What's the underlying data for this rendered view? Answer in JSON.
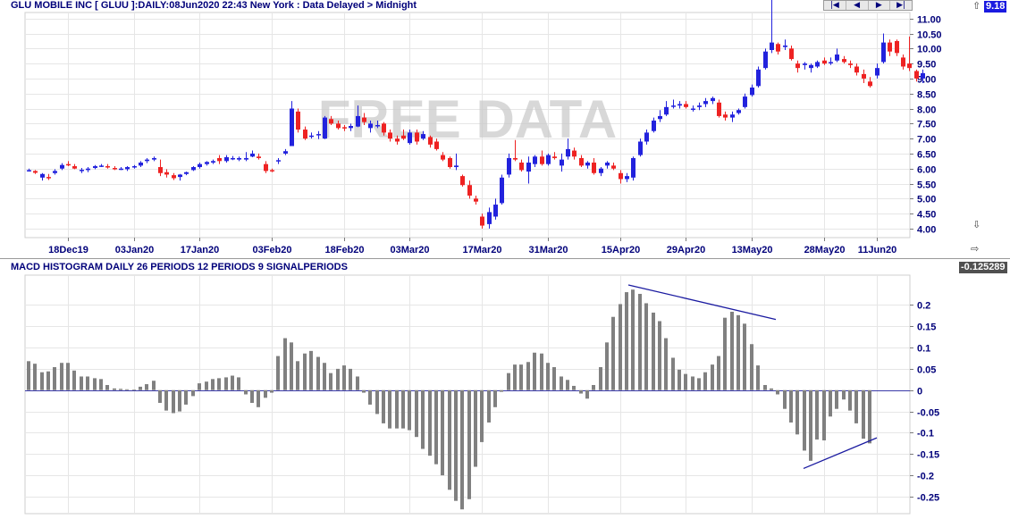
{
  "header": {
    "title": "GLU MOBILE INC [ GLUU ]:DAILY:08Jun2020 22:43 New York : Data Delayed > Midnight",
    "nav_buttons": [
      "|◀",
      "◀",
      "▶",
      "▶|"
    ],
    "last_price": "9.18"
  },
  "macd_header": {
    "title": "MACD HISTOGRAM DAILY 26 PERIODS 12 PERIODS 9 SIGNALPERIODS",
    "last_value": "-0.125289"
  },
  "watermark": "FREE DATA",
  "colors": {
    "up": "#2222dd",
    "down": "#ee2222",
    "histogram": "#808080",
    "trendline": "#1a1aa0",
    "badge": "#1a1ae0",
    "text": "#00007a"
  },
  "chart_data": [
    {
      "type": "candlestick",
      "title": "GLU MOBILE INC [ GLUU ]:DAILY",
      "x_tick_labels": [
        "18Dec19",
        "03Jan20",
        "17Jan20",
        "03Feb20",
        "18Feb20",
        "03Mar20",
        "17Mar20",
        "31Mar20",
        "15Apr20",
        "29Apr20",
        "13May20",
        "28May20",
        "11Jun20"
      ],
      "x_tick_index": [
        6,
        16,
        26,
        37,
        48,
        58,
        69,
        79,
        90,
        100,
        110,
        121,
        129
      ],
      "y_tick_labels": [
        "4.00",
        "4.50",
        "5.00",
        "5.50",
        "6.00",
        "6.50",
        "7.00",
        "7.50",
        "8.00",
        "8.50",
        "9.00",
        "9.50",
        "10.00",
        "10.50",
        "11.00"
      ],
      "ylim": [
        3.7,
        11.2
      ],
      "candles": [
        [
          5.95,
          6.0,
          5.9,
          5.95
        ],
        [
          5.92,
          5.95,
          5.82,
          5.86
        ],
        [
          5.7,
          5.85,
          5.6,
          5.82
        ],
        [
          5.72,
          5.82,
          5.62,
          5.68
        ],
        [
          5.85,
          5.98,
          5.8,
          5.92
        ],
        [
          6.0,
          6.18,
          5.95,
          6.12
        ],
        [
          6.15,
          6.25,
          6.08,
          6.12
        ],
        [
          6.08,
          6.15,
          5.98,
          6.0
        ],
        [
          5.92,
          6.02,
          5.85,
          5.96
        ],
        [
          5.95,
          6.05,
          5.88,
          6.0
        ],
        [
          6.02,
          6.12,
          5.98,
          6.08
        ],
        [
          6.1,
          6.15,
          6.05,
          6.1
        ],
        [
          6.08,
          6.15,
          6.0,
          6.05
        ],
        [
          6.02,
          6.08,
          5.95,
          6.0
        ],
        [
          6.0,
          6.05,
          5.95,
          6.0
        ],
        [
          5.98,
          6.08,
          5.92,
          6.05
        ],
        [
          6.05,
          6.12,
          6.0,
          6.08
        ],
        [
          6.1,
          6.25,
          6.05,
          6.2
        ],
        [
          6.25,
          6.35,
          6.18,
          6.3
        ],
        [
          6.3,
          6.4,
          6.25,
          6.35
        ],
        [
          6.05,
          6.3,
          5.75,
          5.85
        ],
        [
          5.88,
          5.98,
          5.7,
          5.8
        ],
        [
          5.78,
          5.85,
          5.62,
          5.68
        ],
        [
          5.72,
          5.82,
          5.6,
          5.8
        ],
        [
          5.82,
          5.9,
          5.78,
          5.88
        ],
        [
          5.95,
          6.08,
          5.92,
          6.05
        ],
        [
          6.05,
          6.2,
          6.0,
          6.15
        ],
        [
          6.15,
          6.25,
          6.1,
          6.22
        ],
        [
          6.2,
          6.3,
          6.15,
          6.25
        ],
        [
          6.35,
          6.45,
          6.15,
          6.25
        ],
        [
          6.25,
          6.45,
          6.2,
          6.38
        ],
        [
          6.35,
          6.42,
          6.28,
          6.35
        ],
        [
          6.3,
          6.4,
          6.25,
          6.35
        ],
        [
          6.3,
          6.55,
          6.25,
          6.35
        ],
        [
          6.4,
          6.6,
          6.38,
          6.5
        ],
        [
          6.4,
          6.5,
          6.3,
          6.35
        ],
        [
          6.15,
          6.25,
          5.85,
          5.92
        ],
        [
          5.95,
          6.0,
          5.88,
          5.92
        ],
        [
          6.25,
          6.35,
          6.15,
          6.28
        ],
        [
          6.5,
          6.65,
          6.45,
          6.58
        ],
        [
          6.75,
          8.25,
          6.75,
          8.0
        ],
        [
          7.9,
          8.0,
          7.2,
          7.3
        ],
        [
          7.3,
          7.4,
          6.95,
          7.0
        ],
        [
          7.1,
          7.2,
          7.0,
          7.1
        ],
        [
          7.15,
          7.25,
          6.98,
          7.15
        ],
        [
          7.0,
          7.75,
          6.98,
          7.7
        ],
        [
          7.65,
          7.75,
          7.45,
          7.5
        ],
        [
          7.5,
          7.6,
          7.3,
          7.35
        ],
        [
          7.38,
          7.45,
          7.25,
          7.35
        ],
        [
          7.35,
          7.5,
          7.25,
          7.42
        ],
        [
          7.4,
          8.1,
          7.38,
          7.75
        ],
        [
          7.7,
          7.85,
          7.45,
          7.55
        ],
        [
          7.35,
          7.6,
          7.2,
          7.5
        ],
        [
          7.45,
          7.6,
          7.35,
          7.45
        ],
        [
          7.5,
          7.55,
          7.1,
          7.2
        ],
        [
          7.2,
          7.3,
          6.9,
          7.0
        ],
        [
          7.0,
          7.1,
          6.8,
          6.9
        ],
        [
          7.1,
          7.3,
          6.95,
          7.0
        ],
        [
          6.85,
          7.3,
          6.8,
          7.2
        ],
        [
          7.2,
          7.3,
          6.8,
          6.9
        ],
        [
          7.0,
          7.25,
          6.95,
          7.15
        ],
        [
          7.05,
          7.1,
          6.7,
          6.8
        ],
        [
          6.9,
          7.0,
          6.6,
          6.65
        ],
        [
          6.45,
          6.55,
          6.25,
          6.3
        ],
        [
          6.35,
          6.4,
          6.0,
          6.05
        ],
        [
          6.05,
          6.5,
          5.95,
          6.1
        ],
        [
          5.75,
          5.8,
          5.4,
          5.45
        ],
        [
          5.45,
          5.6,
          5.0,
          5.1
        ],
        [
          5.0,
          5.1,
          4.8,
          4.9
        ],
        [
          4.4,
          4.5,
          4.0,
          4.1
        ],
        [
          4.15,
          4.7,
          4.0,
          4.55
        ],
        [
          4.4,
          5.0,
          4.3,
          4.8
        ],
        [
          4.85,
          5.8,
          4.8,
          5.7
        ],
        [
          5.8,
          6.5,
          5.7,
          6.35
        ],
        [
          6.35,
          6.95,
          6.25,
          6.3
        ],
        [
          6.2,
          6.3,
          5.9,
          5.95
        ],
        [
          5.9,
          6.4,
          5.5,
          6.2
        ],
        [
          6.15,
          6.45,
          6.05,
          6.4
        ],
        [
          6.4,
          6.6,
          6.1,
          6.15
        ],
        [
          6.15,
          6.5,
          6.1,
          6.45
        ],
        [
          6.4,
          6.55,
          6.3,
          6.35
        ],
        [
          6.1,
          6.5,
          5.9,
          6.3
        ],
        [
          6.4,
          7.0,
          6.3,
          6.65
        ],
        [
          6.6,
          6.7,
          6.3,
          6.4
        ],
        [
          6.35,
          6.45,
          6.05,
          6.1
        ],
        [
          6.1,
          6.25,
          6.0,
          6.2
        ],
        [
          6.2,
          6.35,
          5.8,
          5.85
        ],
        [
          5.85,
          6.05,
          5.75,
          6.0
        ],
        [
          6.1,
          6.25,
          6.0,
          6.2
        ],
        [
          6.1,
          6.2,
          5.95,
          6.0
        ],
        [
          5.85,
          5.95,
          5.5,
          5.65
        ],
        [
          5.65,
          5.85,
          5.55,
          5.75
        ],
        [
          5.7,
          6.4,
          5.6,
          6.35
        ],
        [
          6.45,
          7.0,
          6.4,
          6.9
        ],
        [
          6.9,
          7.3,
          6.8,
          7.2
        ],
        [
          7.25,
          7.7,
          7.2,
          7.6
        ],
        [
          7.65,
          7.95,
          7.55,
          7.75
        ],
        [
          7.8,
          8.25,
          7.75,
          8.05
        ],
        [
          8.1,
          8.3,
          8.0,
          8.1
        ],
        [
          8.1,
          8.25,
          8.0,
          8.15
        ],
        [
          8.15,
          8.25,
          8.0,
          8.05
        ],
        [
          8.0,
          8.1,
          7.9,
          8.0
        ],
        [
          8.05,
          8.2,
          7.95,
          8.1
        ],
        [
          8.15,
          8.35,
          8.05,
          8.25
        ],
        [
          8.25,
          8.4,
          8.15,
          8.35
        ],
        [
          8.2,
          8.3,
          7.7,
          7.75
        ],
        [
          7.8,
          7.9,
          7.6,
          7.7
        ],
        [
          7.7,
          7.9,
          7.55,
          7.8
        ],
        [
          7.85,
          8.0,
          7.8,
          7.95
        ],
        [
          8.05,
          8.5,
          8.0,
          8.4
        ],
        [
          8.45,
          8.8,
          8.4,
          8.7
        ],
        [
          8.75,
          9.4,
          8.7,
          9.3
        ],
        [
          9.35,
          10.0,
          9.3,
          9.9
        ],
        [
          9.95,
          11.7,
          9.85,
          10.2
        ],
        [
          10.15,
          10.2,
          9.8,
          9.9
        ],
        [
          10.05,
          10.3,
          9.95,
          10.1
        ],
        [
          10.0,
          10.1,
          9.6,
          9.65
        ],
        [
          9.5,
          9.6,
          9.2,
          9.35
        ],
        [
          9.45,
          9.55,
          9.3,
          9.5
        ],
        [
          9.35,
          9.5,
          9.2,
          9.45
        ],
        [
          9.4,
          9.6,
          9.35,
          9.55
        ],
        [
          9.6,
          9.7,
          9.45,
          9.5
        ],
        [
          9.55,
          9.7,
          9.45,
          9.55
        ],
        [
          9.6,
          10.0,
          9.55,
          9.8
        ],
        [
          9.65,
          9.75,
          9.5,
          9.55
        ],
        [
          9.5,
          9.6,
          9.35,
          9.45
        ],
        [
          9.4,
          9.5,
          9.1,
          9.2
        ],
        [
          9.15,
          9.3,
          8.85,
          9.0
        ],
        [
          8.9,
          9.05,
          8.7,
          8.75
        ],
        [
          9.1,
          9.5,
          9.0,
          9.35
        ],
        [
          9.55,
          10.5,
          9.5,
          10.2
        ],
        [
          10.2,
          10.3,
          9.75,
          9.9
        ],
        [
          10.25,
          10.3,
          9.75,
          9.85
        ],
        [
          9.7,
          9.8,
          9.3,
          9.4
        ],
        [
          9.5,
          10.4,
          9.25,
          9.35
        ],
        [
          9.25,
          9.3,
          8.9,
          9.0
        ],
        [
          9.0,
          9.3,
          8.85,
          9.18
        ]
      ]
    },
    {
      "type": "bar",
      "title": "MACD HISTOGRAM DAILY 26 PERIODS 12 PERIODS 9 SIGNALPERIODS",
      "y_tick_labels": [
        "0.2",
        "0.15",
        "0.1",
        "0.05",
        "0",
        "-0.05",
        "-0.1",
        "-0.15",
        "-0.2",
        "-0.25"
      ],
      "ylim": [
        -0.29,
        0.27
      ],
      "values": [
        0.068,
        0.062,
        0.042,
        0.044,
        0.054,
        0.064,
        0.064,
        0.046,
        0.032,
        0.032,
        0.028,
        0.026,
        0.012,
        0.004,
        0.003,
        0.002,
        0.001,
        0.008,
        0.014,
        0.022,
        -0.03,
        -0.048,
        -0.054,
        -0.05,
        -0.034,
        -0.014,
        0.016,
        0.02,
        0.026,
        0.028,
        0.03,
        0.034,
        0.03,
        -0.01,
        -0.03,
        -0.04,
        -0.018,
        -0.006,
        0.08,
        0.122,
        0.112,
        0.068,
        0.086,
        0.092,
        0.078,
        0.064,
        0.04,
        0.05,
        0.058,
        0.05,
        0.032,
        -0.006,
        -0.034,
        -0.056,
        -0.078,
        -0.09,
        -0.09,
        -0.09,
        -0.094,
        -0.11,
        -0.138,
        -0.154,
        -0.174,
        -0.2,
        -0.234,
        -0.26,
        -0.28,
        -0.256,
        -0.18,
        -0.122,
        -0.076,
        -0.04,
        -0.004,
        0.04,
        0.06,
        0.06,
        0.066,
        0.088,
        0.086,
        0.064,
        0.054,
        0.032,
        0.024,
        0.01,
        -0.008,
        -0.02,
        0.012,
        0.054,
        0.112,
        0.172,
        0.202,
        0.23,
        0.236,
        0.226,
        0.204,
        0.182,
        0.162,
        0.122,
        0.076,
        0.048,
        0.038,
        0.032,
        0.028,
        0.042,
        0.06,
        0.08,
        0.17,
        0.184,
        0.176,
        0.156,
        0.108,
        0.058,
        0.012,
        0.004,
        -0.01,
        -0.044,
        -0.076,
        -0.104,
        -0.142,
        -0.166,
        -0.116,
        -0.118,
        -0.062,
        -0.044,
        -0.022,
        -0.048,
        -0.078,
        -0.114,
        -0.125
      ]
    }
  ]
}
